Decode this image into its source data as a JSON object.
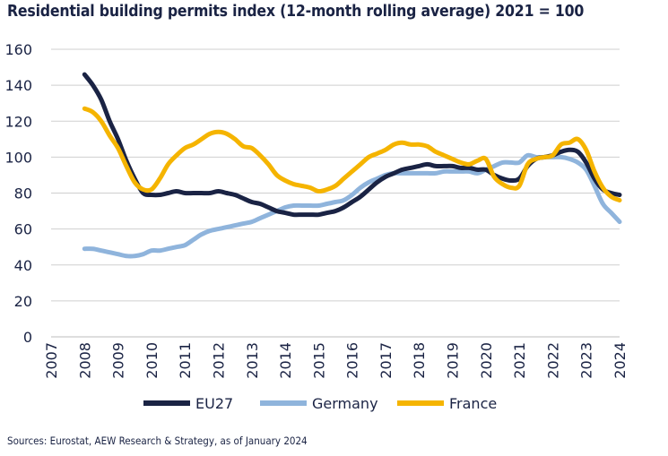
{
  "chart_data": {
    "type": "line",
    "title": "Residential building permits index (12-month rolling average) 2021 = 100",
    "source": "Sources: Eurostat, AEW Research & Strategy, as of January 2024",
    "xlabel": "",
    "ylabel": "",
    "xlim": [
      2007,
      2024
    ],
    "ylim": [
      0,
      160
    ],
    "y_ticks": [
      0,
      20,
      40,
      60,
      80,
      100,
      120,
      140,
      160
    ],
    "x_ticks": [
      "2007",
      "2008",
      "2009",
      "2010",
      "2011",
      "2012",
      "2013",
      "2014",
      "2015",
      "2016",
      "2017",
      "2018",
      "2019",
      "2020",
      "2021",
      "2022",
      "2023",
      "2024"
    ],
    "grid": "horizontal",
    "legend_position": "bottom",
    "colors": {
      "EU27": "#1a2344",
      "Germany": "#8fb4dc",
      "France": "#f5b400"
    },
    "series": [
      {
        "name": "EU27",
        "x": [
          2008.0,
          2008.25,
          2008.5,
          2008.75,
          2009.0,
          2009.25,
          2009.5,
          2009.75,
          2010.0,
          2010.25,
          2010.5,
          2010.75,
          2011.0,
          2011.25,
          2011.5,
          2011.75,
          2012.0,
          2012.25,
          2012.5,
          2012.75,
          2013.0,
          2013.25,
          2013.5,
          2013.75,
          2014.0,
          2014.25,
          2014.5,
          2014.75,
          2015.0,
          2015.25,
          2015.5,
          2015.75,
          2016.0,
          2016.25,
          2016.5,
          2016.75,
          2017.0,
          2017.25,
          2017.5,
          2017.75,
          2018.0,
          2018.25,
          2018.5,
          2018.75,
          2019.0,
          2019.25,
          2019.5,
          2019.75,
          2020.0,
          2020.25,
          2020.5,
          2020.75,
          2021.0,
          2021.25,
          2021.5,
          2021.75,
          2022.0,
          2022.25,
          2022.5,
          2022.75,
          2023.0,
          2023.25,
          2023.5,
          2023.75,
          2024.0
        ],
        "values": [
          146,
          140,
          132,
          120,
          110,
          98,
          88,
          80,
          79,
          79,
          80,
          81,
          80,
          80,
          80,
          80,
          81,
          80,
          79,
          77,
          75,
          74,
          72,
          70,
          69,
          68,
          68,
          68,
          68,
          69,
          70,
          72,
          75,
          78,
          82,
          86,
          89,
          91,
          93,
          94,
          95,
          96,
          95,
          95,
          95,
          94,
          94,
          93,
          93,
          90,
          88,
          87,
          88,
          95,
          99,
          100,
          101,
          103,
          104,
          103,
          97,
          88,
          82,
          80,
          79
        ]
      },
      {
        "name": "Germany",
        "x": [
          2008.0,
          2008.25,
          2008.5,
          2008.75,
          2009.0,
          2009.25,
          2009.5,
          2009.75,
          2010.0,
          2010.25,
          2010.5,
          2010.75,
          2011.0,
          2011.25,
          2011.5,
          2011.75,
          2012.0,
          2012.25,
          2012.5,
          2012.75,
          2013.0,
          2013.25,
          2013.5,
          2013.75,
          2014.0,
          2014.25,
          2014.5,
          2014.75,
          2015.0,
          2015.25,
          2015.5,
          2015.75,
          2016.0,
          2016.25,
          2016.5,
          2016.75,
          2017.0,
          2017.25,
          2017.5,
          2017.75,
          2018.0,
          2018.25,
          2018.5,
          2018.75,
          2019.0,
          2019.25,
          2019.5,
          2019.75,
          2020.0,
          2020.25,
          2020.5,
          2020.75,
          2021.0,
          2021.25,
          2021.5,
          2021.75,
          2022.0,
          2022.25,
          2022.5,
          2022.75,
          2023.0,
          2023.25,
          2023.5,
          2023.75,
          2024.0
        ],
        "values": [
          49,
          49,
          48,
          47,
          46,
          45,
          45,
          46,
          48,
          48,
          49,
          50,
          51,
          54,
          57,
          59,
          60,
          61,
          62,
          63,
          64,
          66,
          68,
          70,
          72,
          73,
          73,
          73,
          73,
          74,
          75,
          76,
          79,
          83,
          86,
          88,
          90,
          91,
          91,
          91,
          91,
          91,
          91,
          92,
          92,
          92,
          92,
          91,
          93,
          95,
          97,
          97,
          97,
          101,
          100,
          100,
          100,
          100,
          99,
          97,
          93,
          84,
          74,
          69,
          64
        ]
      },
      {
        "name": "France",
        "x": [
          2008.0,
          2008.25,
          2008.5,
          2008.75,
          2009.0,
          2009.25,
          2009.5,
          2009.75,
          2010.0,
          2010.25,
          2010.5,
          2010.75,
          2011.0,
          2011.25,
          2011.5,
          2011.75,
          2012.0,
          2012.25,
          2012.5,
          2012.75,
          2013.0,
          2013.25,
          2013.5,
          2013.75,
          2014.0,
          2014.25,
          2014.5,
          2014.75,
          2015.0,
          2015.25,
          2015.5,
          2015.75,
          2016.0,
          2016.25,
          2016.5,
          2016.75,
          2017.0,
          2017.25,
          2017.5,
          2017.75,
          2018.0,
          2018.25,
          2018.5,
          2018.75,
          2019.0,
          2019.25,
          2019.5,
          2019.75,
          2020.0,
          2020.25,
          2020.5,
          2020.75,
          2021.0,
          2021.25,
          2021.5,
          2021.75,
          2022.0,
          2022.25,
          2022.5,
          2022.75,
          2023.0,
          2023.25,
          2023.5,
          2023.75,
          2024.0
        ],
        "values": [
          127,
          125,
          120,
          112,
          105,
          95,
          86,
          82,
          82,
          88,
          96,
          101,
          105,
          107,
          110,
          113,
          114,
          113,
          110,
          106,
          105,
          101,
          96,
          90,
          87,
          85,
          84,
          83,
          81,
          82,
          84,
          88,
          92,
          96,
          100,
          102,
          104,
          107,
          108,
          107,
          107,
          106,
          103,
          101,
          99,
          97,
          96,
          98,
          99,
          89,
          85,
          83,
          84,
          96,
          99,
          100,
          101,
          107,
          108,
          110,
          104,
          92,
          83,
          78,
          76
        ]
      }
    ]
  }
}
